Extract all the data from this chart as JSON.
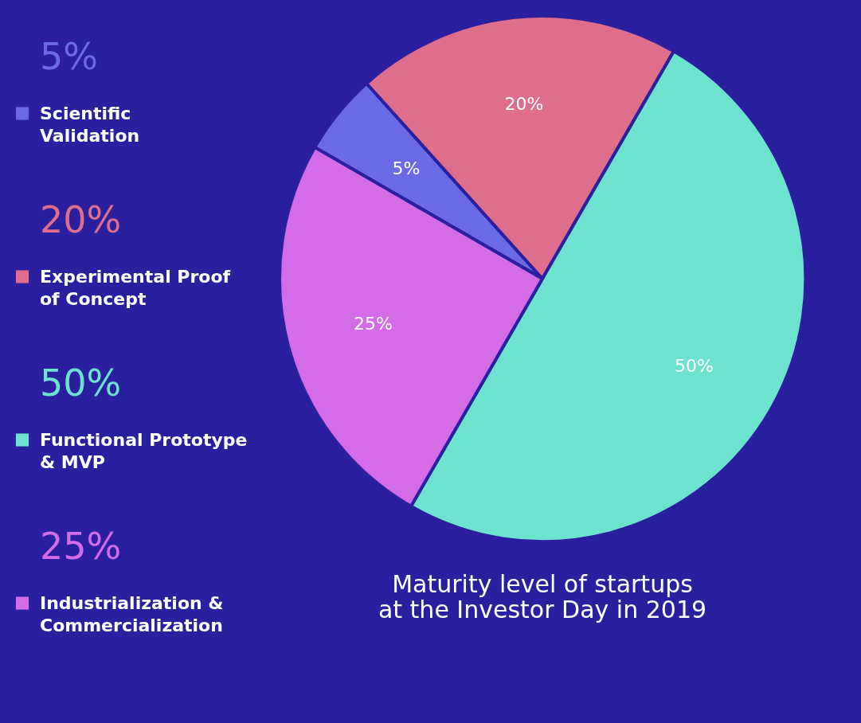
{
  "chart_data": {
    "type": "pie",
    "title": "Maturity level of startups at the Investor Day in 2019",
    "categories": [
      "Scientific Validation",
      "Experimental Proof of Concept",
      "Functional Prototype & MVP",
      "Industrialization & Commercialization"
    ],
    "values": [
      5,
      20,
      50,
      25
    ],
    "value_labels": [
      "5%",
      "20%",
      "50%",
      "25%"
    ],
    "colors": [
      "#6b6ae6",
      "#df6e8c",
      "#6de3cf",
      "#d36ce6"
    ],
    "legend": "left"
  }
}
